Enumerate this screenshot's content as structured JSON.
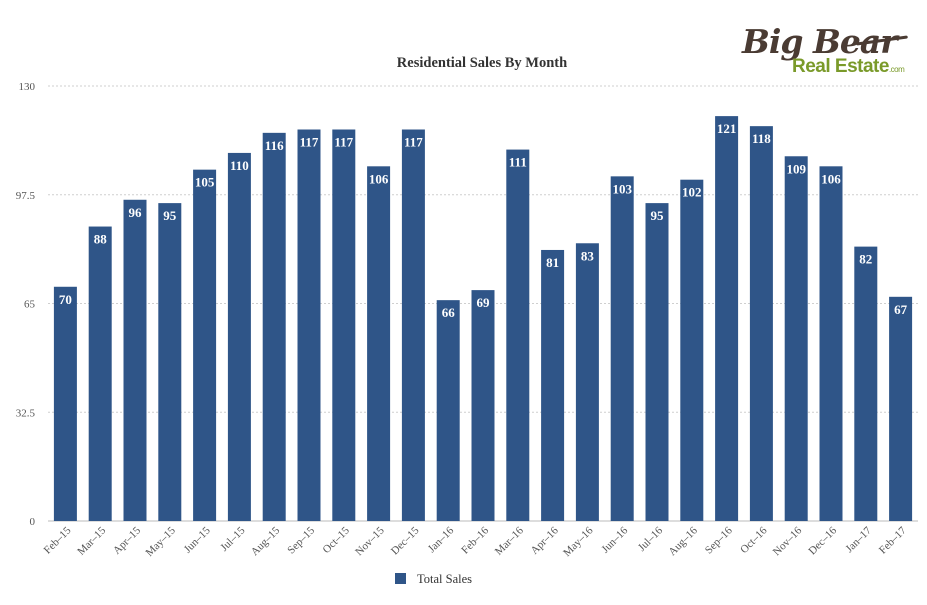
{
  "logo": {
    "line1": "Big Bear",
    "line2": "Real Estate",
    "suffix": ".com"
  },
  "chart_data": {
    "type": "bar",
    "title": "Residential Sales By Month",
    "xlabel": "",
    "ylabel": "",
    "ylim": [
      0,
      130
    ],
    "yticks": [
      "0",
      "32.5",
      "65",
      "97.5",
      "130"
    ],
    "grid": true,
    "legend_position": "bottom",
    "categories": [
      "Feb–15",
      "Mar–15",
      "Apr–15",
      "May–15",
      "Jun–15",
      "Jul–15",
      "Aug–15",
      "Sep–15",
      "Oct–15",
      "Nov–15",
      "Dec–15",
      "Jan–16",
      "Feb–16",
      "Mar–16",
      "Apr–16",
      "May–16",
      "Jun–16",
      "Jul–16",
      "Aug–16",
      "Sep–16",
      "Oct–16",
      "Nov–16",
      "Dec–16",
      "Jan–17",
      "Feb–17"
    ],
    "series": [
      {
        "name": "Total Sales",
        "color": "#2f5588",
        "values": [
          70,
          88,
          96,
          95,
          105,
          110,
          116,
          117,
          117,
          106,
          117,
          66,
          69,
          111,
          81,
          83,
          103,
          95,
          102,
          121,
          118,
          109,
          106,
          82,
          67
        ]
      }
    ]
  }
}
